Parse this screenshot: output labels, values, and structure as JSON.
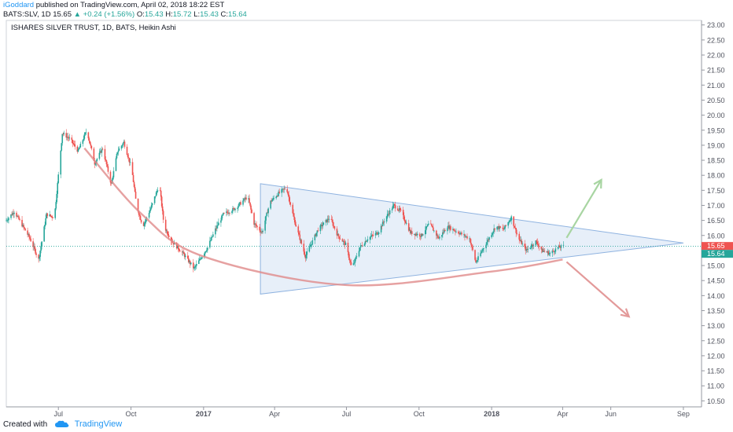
{
  "header": {
    "author": "iGoddard",
    "published_text": " published on TradingView.com, April 02, 2018 18:22 EST"
  },
  "ohlc": {
    "symbol_text": "BATS:SLV, 1D",
    "close": "15.65",
    "change": "+0.24 (+1.56%)",
    "o_label": "O:",
    "o_value": "15.43",
    "h_label": "H:",
    "h_value": "15.72",
    "l_label": "L:",
    "l_value": "15.43",
    "c_label": "C:",
    "c_value": "15.64",
    "up_arrow": "▲"
  },
  "footer": {
    "created_with": "Created with",
    "brand": "TradingView"
  },
  "colors": {
    "up": "#26a69a",
    "down": "#ef5350",
    "triangle_fill": "#e3ecf8",
    "triangle_stroke": "#8fb3e0",
    "bowl": "#e08a8a",
    "arrow_up": "#a8d5a2",
    "arrow_down": "#e39a9a",
    "price_line": "#26a69a",
    "last_up_label": "#ef5350",
    "last_label": "#26a69a"
  },
  "chart_data": {
    "type": "candlestick",
    "title": "ISHARES SILVER TRUST, 1D, BATS, Heikin Ashi",
    "x_tick_labels": [
      "Jul",
      "Oct",
      "2017",
      "Apr",
      "Jul",
      "Oct",
      "2018",
      "Apr",
      "Jun",
      "Sep"
    ],
    "x_ticks_dates": [
      "2016-07-01",
      "2016-10-01",
      "2017-01-01",
      "2017-04-01",
      "2017-07-01",
      "2017-10-01",
      "2018-01-01",
      "2018-04-01",
      "2018-06-01",
      "2018-09-01"
    ],
    "y_tick_labels": [
      "23.00",
      "22.50",
      "22.00",
      "21.50",
      "21.00",
      "20.50",
      "20.00",
      "19.50",
      "19.00",
      "18.50",
      "18.00",
      "17.50",
      "17.00",
      "16.50",
      "16.00",
      "15.50",
      "15.00",
      "14.50",
      "14.00",
      "13.50",
      "13.00",
      "12.50",
      "12.00",
      "11.50",
      "11.00",
      "10.50"
    ],
    "ylim": [
      10.3,
      23.15
    ],
    "xlim": [
      "2016-04-26",
      "2018-09-24"
    ],
    "current_price_labels": [
      "15.65",
      "15.64"
    ],
    "close_path": [
      [
        "2016-04-26",
        16.5
      ],
      [
        "2016-05-06",
        16.8
      ],
      [
        "2016-05-26",
        15.9
      ],
      [
        "2016-06-06",
        15.2
      ],
      [
        "2016-06-16",
        16.7
      ],
      [
        "2016-06-26",
        16.6
      ],
      [
        "2016-07-06",
        19.4
      ],
      [
        "2016-07-16",
        19.2
      ],
      [
        "2016-07-26",
        18.8
      ],
      [
        "2016-08-06",
        19.5
      ],
      [
        "2016-08-16",
        18.4
      ],
      [
        "2016-08-26",
        18.9
      ],
      [
        "2016-09-06",
        17.7
      ],
      [
        "2016-09-14",
        18.8
      ],
      [
        "2016-09-22",
        19.1
      ],
      [
        "2016-10-02",
        18.2
      ],
      [
        "2016-10-08",
        17.0
      ],
      [
        "2016-10-16",
        16.3
      ],
      [
        "2016-10-26",
        16.9
      ],
      [
        "2016-11-06",
        17.7
      ],
      [
        "2016-11-12",
        16.3
      ],
      [
        "2016-11-22",
        15.8
      ],
      [
        "2016-12-06",
        15.4
      ],
      [
        "2016-12-20",
        14.9
      ],
      [
        "2017-01-06",
        15.6
      ],
      [
        "2017-01-16",
        16.2
      ],
      [
        "2017-01-26",
        16.7
      ],
      [
        "2017-02-10",
        16.9
      ],
      [
        "2017-02-26",
        17.3
      ],
      [
        "2017-03-06",
        16.4
      ],
      [
        "2017-03-16",
        16.1
      ],
      [
        "2017-03-26",
        17.1
      ],
      [
        "2017-04-06",
        17.4
      ],
      [
        "2017-04-16",
        17.6
      ],
      [
        "2017-04-26",
        16.5
      ],
      [
        "2017-05-10",
        15.3
      ],
      [
        "2017-05-26",
        16.2
      ],
      [
        "2017-06-10",
        16.6
      ],
      [
        "2017-06-20",
        16.0
      ],
      [
        "2017-06-30",
        15.7
      ],
      [
        "2017-07-08",
        14.9
      ],
      [
        "2017-07-18",
        15.6
      ],
      [
        "2017-07-28",
        15.9
      ],
      [
        "2017-08-10",
        16.1
      ],
      [
        "2017-08-20",
        16.6
      ],
      [
        "2017-08-30",
        17.0
      ],
      [
        "2017-09-08",
        16.8
      ],
      [
        "2017-09-20",
        16.1
      ],
      [
        "2017-10-04",
        16.0
      ],
      [
        "2017-10-14",
        16.4
      ],
      [
        "2017-10-26",
        15.9
      ],
      [
        "2017-11-06",
        16.3
      ],
      [
        "2017-11-20",
        16.1
      ],
      [
        "2017-12-04",
        15.9
      ],
      [
        "2017-12-12",
        15.1
      ],
      [
        "2017-12-22",
        15.6
      ],
      [
        "2018-01-06",
        16.3
      ],
      [
        "2018-01-16",
        16.2
      ],
      [
        "2018-01-26",
        16.6
      ],
      [
        "2018-02-04",
        15.9
      ],
      [
        "2018-02-14",
        15.5
      ],
      [
        "2018-02-26",
        15.8
      ],
      [
        "2018-03-06",
        15.5
      ],
      [
        "2018-03-16",
        15.4
      ],
      [
        "2018-03-26",
        15.6
      ],
      [
        "2018-04-02",
        15.64
      ]
    ],
    "annotations": {
      "triangle": [
        [
          "2017-03-14",
          17.72
        ],
        [
          "2018-09-01",
          15.75
        ],
        [
          "2017-03-14",
          14.05
        ]
      ],
      "bowl_curve": [
        [
          "2016-08-03",
          18.9
        ],
        [
          "2016-10-15",
          16.7
        ],
        [
          "2017-01-01",
          15.3
        ],
        [
          "2017-07-01",
          14.35
        ],
        [
          "2018-01-01",
          14.8
        ],
        [
          "2018-04-01",
          15.2
        ]
      ],
      "arrow_up": [
        [
          "2018-04-06",
          15.92
        ],
        [
          "2018-05-20",
          17.85
        ]
      ],
      "arrow_down": [
        [
          "2018-04-06",
          15.12
        ],
        [
          "2018-06-24",
          13.3
        ]
      ]
    }
  }
}
